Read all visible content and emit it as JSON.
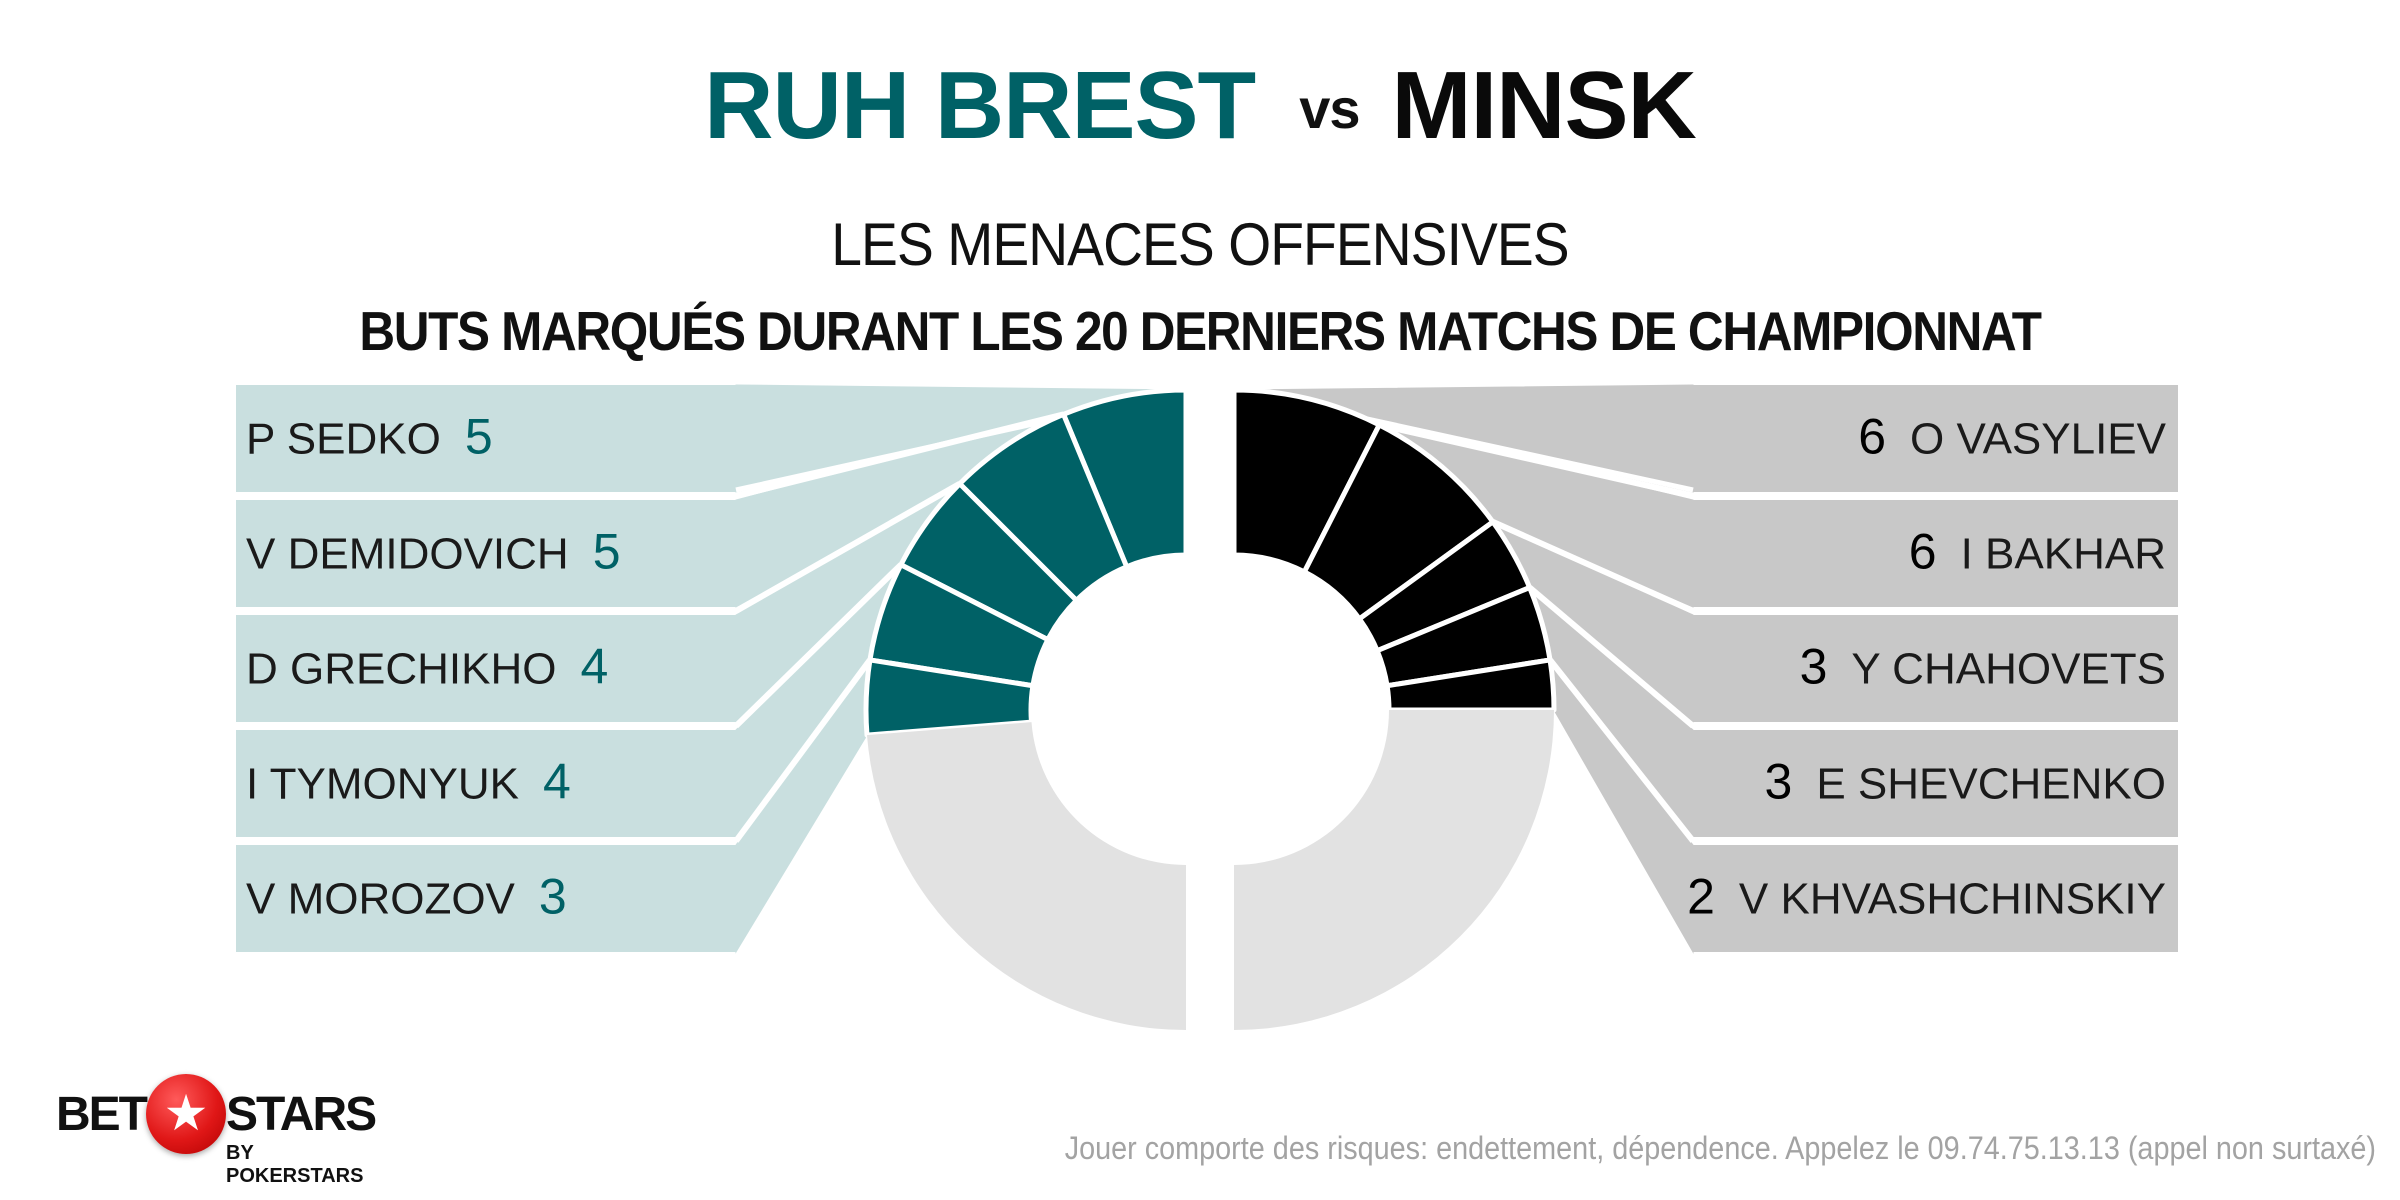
{
  "header": {
    "home_team": "RUH BREST",
    "vs": "vs",
    "away_team": "MINSK",
    "title": "LES MENACES OFFENSIVES",
    "subtitle": "BUTS MARQUÉS DURANT LES 20 DERNIERS MATCHS DE CHAMPIONNAT"
  },
  "colors": {
    "home_accent": "#006166",
    "home_panel": "#c9dfdf",
    "away_accent": "#000000",
    "away_panel": "#c8c8c8",
    "remainder": "#e2e2e2"
  },
  "chart_data": [
    {
      "type": "pie",
      "variant": "half-donut-left",
      "team": "RUH BREST",
      "categories": [
        "P SEDKO",
        "V DEMIDOVICH",
        "D GRECHIKHO",
        "I TYMONYUK",
        "V MOROZOV"
      ],
      "values": [
        5,
        5,
        4,
        4,
        3
      ]
    },
    {
      "type": "pie",
      "variant": "half-donut-right",
      "team": "MINSK",
      "categories": [
        "O VASYLIEV",
        "I BAKHAR",
        "Y CHAHOVETS",
        "E SHEVCHENKO",
        "V KHVASHCHINSKIY"
      ],
      "values": [
        6,
        6,
        3,
        3,
        2
      ]
    }
  ],
  "footer": {
    "disclaimer": "Jouer comporte des risques: endettement, dépendence. Appelez le 09.74.75.13.13 (appel non surtaxé)"
  },
  "logo": {
    "bet": "BET",
    "stars": "STARS",
    "sub": "BY POKERSTARS",
    "icon": "star-icon"
  }
}
